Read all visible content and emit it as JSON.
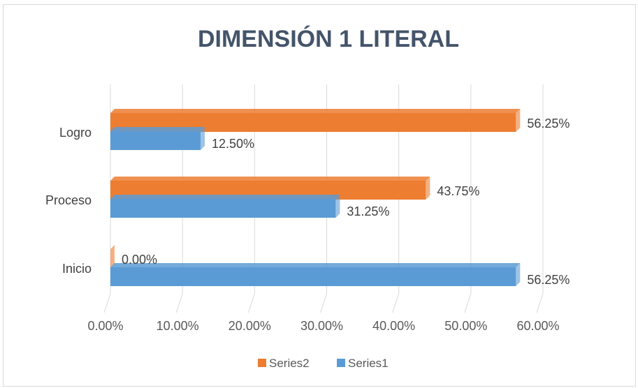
{
  "chart_data": {
    "type": "bar",
    "orientation": "horizontal",
    "title": "DIMENSIÓN 1 LITERAL",
    "categories": [
      "Inicio",
      "Proceso",
      "Logro"
    ],
    "series": [
      {
        "name": "Series1",
        "values": [
          56.25,
          31.25,
          12.5
        ],
        "color": "#5b9bd5"
      },
      {
        "name": "Series2",
        "values": [
          0.0,
          43.75,
          56.25
        ],
        "color": "#ed7d31"
      }
    ],
    "data_labels": {
      "Series1": [
        "56.25%",
        "31.25%",
        "12.50%"
      ],
      "Series2": [
        "0.00%",
        "43.75%",
        "56.25%"
      ]
    },
    "xlim": [
      0,
      60
    ],
    "x_ticks": [
      "0.00%",
      "10.00%",
      "20.00%",
      "30.00%",
      "40.00%",
      "50.00%",
      "60.00%"
    ],
    "grid": true,
    "legend_position": "bottom",
    "legend": [
      "Series2",
      "Series1"
    ]
  }
}
